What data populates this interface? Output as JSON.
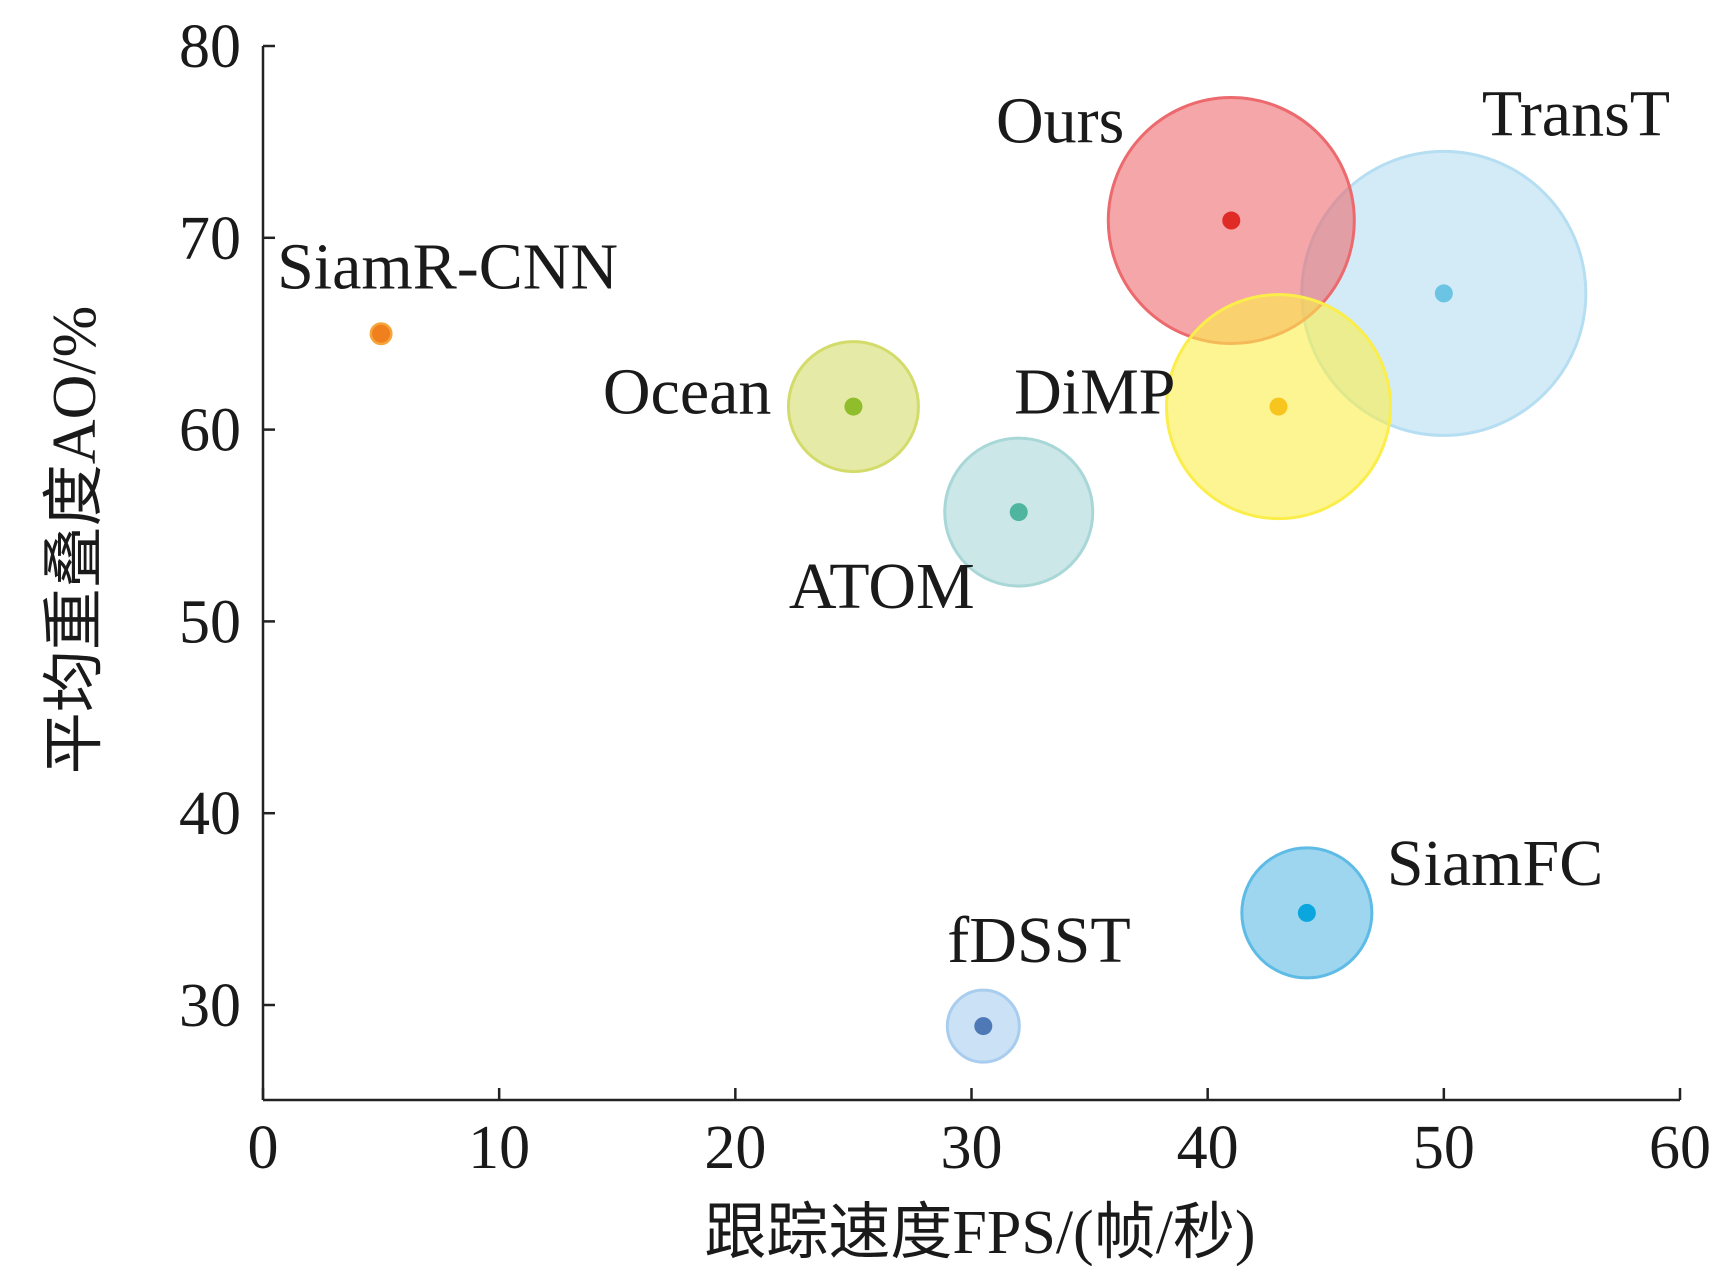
{
  "chart_data": {
    "type": "scatter",
    "xlabel": "跟踪速度FPS/(帧/秒)",
    "ylabel": "平均重叠度AO/%",
    "xlim": [
      0,
      60
    ],
    "ylim": [
      25,
      80
    ],
    "x_ticks": [
      "0",
      "10",
      "20",
      "30",
      "40",
      "50",
      "60"
    ],
    "y_ticks": [
      "30",
      "40",
      "50",
      "60",
      "70",
      "80"
    ],
    "grid": false,
    "legend": "none",
    "points": [
      {
        "label": "SiamR-CNN",
        "x": 5,
        "y": 65,
        "bubble_color": "#f6a53a",
        "dot_color": "#f07f1e",
        "label_pos": "above"
      },
      {
        "label": "Ocean",
        "x": 25,
        "y": 61.2,
        "bubble_color": "#d3dc6a",
        "dot_color": "#8fbd2b",
        "label_pos": "left"
      },
      {
        "label": "ATOM",
        "x": 32,
        "y": 55.7,
        "bubble_color": "#a9d7d7",
        "dot_color": "#4fb59f",
        "label_pos": "below-left"
      },
      {
        "label": "DiMP",
        "x": 43,
        "y": 61.2,
        "bubble_color": "#fbee4a",
        "dot_color": "#f7c51e",
        "label_pos": "left"
      },
      {
        "label": "Ours",
        "x": 41,
        "y": 70.9,
        "bubble_color": "#ec6a6e",
        "dot_color": "#e02a26",
        "label_pos": "upper-left"
      },
      {
        "label": "TransT",
        "x": 50,
        "y": 67.1,
        "bubble_color": "#b6def2",
        "dot_color": "#6bc4e4",
        "label_pos": "upper-right"
      },
      {
        "label": "SiamFC",
        "x": 44.2,
        "y": 34.8,
        "bubble_color": "#5dbbe6",
        "dot_color": "#0ba6de",
        "label_pos": "upper-right"
      },
      {
        "label": "fDSST",
        "x": 30.5,
        "y": 28.9,
        "bubble_color": "#a9cdee",
        "dot_color": "#4f78b6",
        "label_pos": "above"
      }
    ]
  }
}
